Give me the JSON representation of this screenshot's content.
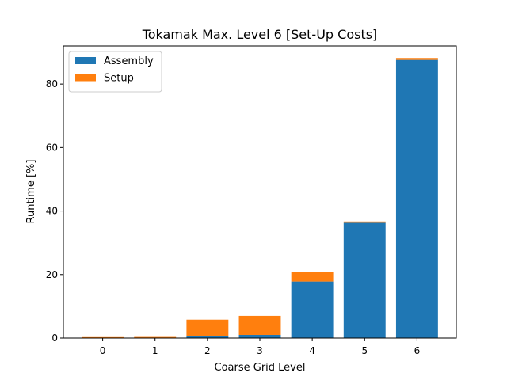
{
  "chart_data": {
    "type": "bar",
    "stacked": true,
    "title": "Tokamak Max. Level 6 [Set-Up Costs]",
    "xlabel": "Coarse Grid Level",
    "ylabel": "Runtime [%]",
    "categories": [
      "0",
      "1",
      "2",
      "3",
      "4",
      "5",
      "6"
    ],
    "ylim": [
      0,
      92
    ],
    "yticks": [
      0,
      20,
      40,
      60,
      80
    ],
    "legend_position": "upper-left",
    "grid": false,
    "series": [
      {
        "name": "Assembly",
        "color": "#1f77b4",
        "values": [
          0.05,
          0.05,
          0.7,
          1.0,
          17.8,
          36.3,
          87.6
        ]
      },
      {
        "name": "Setup",
        "color": "#ff7f0e",
        "values": [
          0.25,
          0.3,
          5.1,
          6.0,
          3.1,
          0.4,
          0.6
        ]
      }
    ]
  }
}
